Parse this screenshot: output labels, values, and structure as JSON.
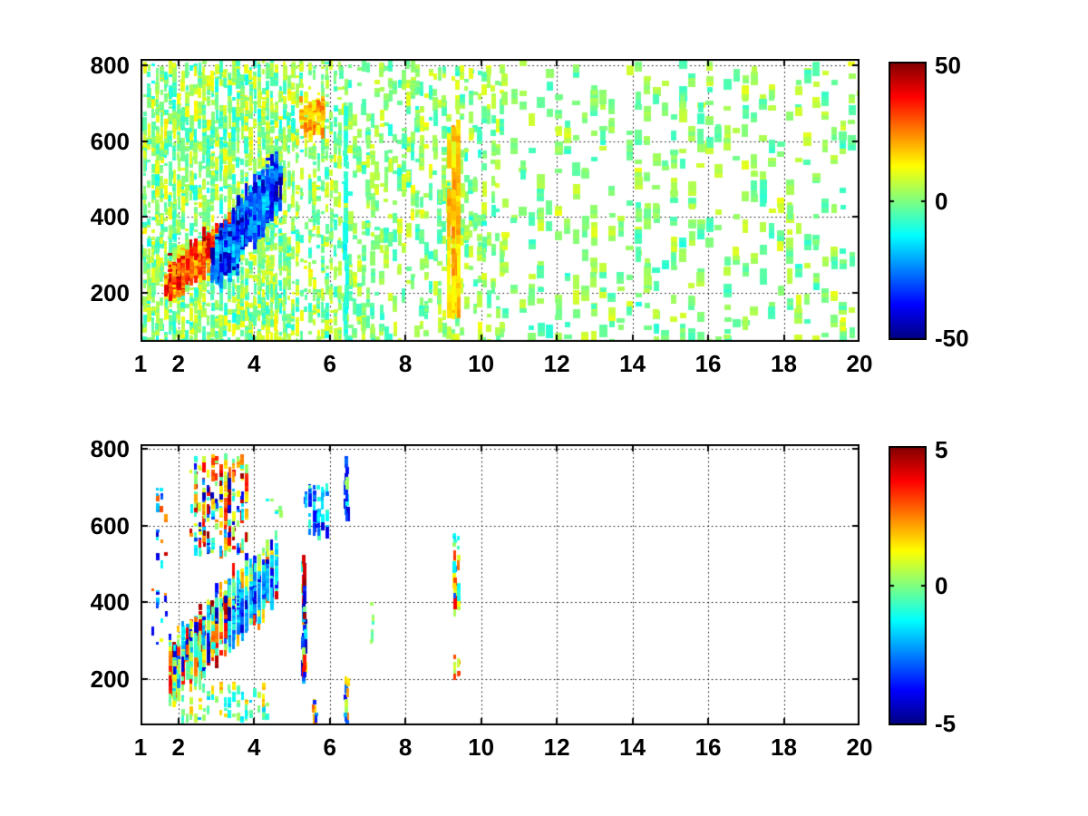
{
  "figure": {
    "background": "#ffffff",
    "axis_color": "#000000",
    "title": ""
  },
  "chart_data": [
    {
      "type": "heatmap",
      "title": "",
      "xlabel": "",
      "ylabel": "",
      "xlim": [
        1,
        20
      ],
      "ylim": [
        71,
        817
      ],
      "xticks": [
        1,
        2,
        4,
        6,
        8,
        10,
        12,
        14,
        16,
        18,
        20
      ],
      "xtick_labels": [
        "1",
        "2",
        "4",
        "6",
        "8",
        "10",
        "12",
        "14",
        "16",
        "18",
        "20"
      ],
      "yticks": [
        200,
        400,
        600,
        800
      ],
      "ytick_labels": [
        "200",
        "400",
        "600",
        "800"
      ],
      "grid": "dotted",
      "colormap": "jet",
      "colormap_stops": [
        "#00008F",
        "#0000FF",
        "#00FFFF",
        "#7FFF7F",
        "#FFFF00",
        "#FF0000",
        "#7F0000"
      ],
      "colorbar": {
        "min": -50,
        "max": 50,
        "ticks": [
          50,
          0,
          -50
        ],
        "labels": [
          "50",
          "0",
          "-50"
        ]
      },
      "seed": 1337,
      "regions": [
        {
          "kind": "scatter",
          "x": [
            1.02,
            5.15
          ],
          "y": [
            75,
            815
          ],
          "n": 1800,
          "v": [
            -10,
            13
          ],
          "w": [
            3,
            5
          ],
          "h": [
            2,
            4
          ],
          "run": [
            1,
            5
          ],
          "pitch": 0.112
        },
        {
          "kind": "scatter",
          "x": [
            5.15,
            6.35
          ],
          "y": [
            75,
            815
          ],
          "n": 300,
          "v": [
            -9,
            12
          ],
          "w": [
            3,
            5
          ],
          "h": [
            2,
            4
          ],
          "run": [
            1,
            4
          ],
          "pitch": 0.112
        },
        {
          "kind": "scatter",
          "x": [
            6.35,
            10.6
          ],
          "y": [
            75,
            815
          ],
          "n": 520,
          "v": [
            -8,
            10
          ],
          "w": [
            4,
            6
          ],
          "h": [
            3,
            5
          ],
          "run": [
            1,
            4
          ],
          "pitch": 0.118
        },
        {
          "kind": "scatter",
          "x": [
            10.6,
            19.95
          ],
          "y": [
            75,
            815
          ],
          "n": 430,
          "v": [
            -7,
            9
          ],
          "w": [
            6,
            9
          ],
          "h": [
            4,
            6
          ],
          "run": [
            1,
            3
          ],
          "pitch": 0.235
        },
        {
          "kind": "band",
          "line": {
            "x": [
              1.7,
              3.7
            ],
            "y": [
              235,
              400
            ]
          },
          "spread": 45,
          "n": 700,
          "v": [
            14,
            46
          ],
          "w": [
            3,
            5
          ],
          "h": [
            2,
            3
          ],
          "run": [
            1,
            6
          ],
          "pitch": 0.112
        },
        {
          "kind": "band",
          "line": {
            "x": [
              2.95,
              4.65
            ],
            "y": [
              290,
              520
            ]
          },
          "spread": 70,
          "n": 800,
          "v": [
            -46,
            -13
          ],
          "w": [
            3,
            5
          ],
          "h": [
            2,
            4
          ],
          "run": [
            1,
            7
          ],
          "pitch": 0.112
        },
        {
          "kind": "scatter",
          "x": [
            5.25,
            5.85
          ],
          "y": [
            630,
            720
          ],
          "n": 60,
          "v": [
            10,
            28
          ],
          "w": [
            4,
            5
          ],
          "h": [
            3,
            4
          ],
          "run": [
            1,
            3
          ],
          "pitch": 0.112
        },
        {
          "kind": "column",
          "x": [
            9.18,
            9.42
          ],
          "y": [
            205,
            660
          ],
          "n": 120,
          "v": [
            11,
            24
          ],
          "w": [
            4,
            5
          ],
          "h": [
            6,
            10
          ],
          "run": [
            2,
            5
          ],
          "pitch": 0.12
        },
        {
          "kind": "column",
          "x": [
            6.4,
            6.46
          ],
          "y": [
            100,
            700
          ],
          "n": 26,
          "v": [
            -13,
            -6
          ],
          "w": [
            4,
            5
          ],
          "h": [
            5,
            9
          ],
          "run": [
            1,
            3
          ],
          "pitch": 0
        }
      ]
    },
    {
      "type": "heatmap",
      "title": "",
      "xlabel": "",
      "ylabel": "",
      "xlim": [
        1,
        20
      ],
      "ylim": [
        80,
        812
      ],
      "xticks": [
        1,
        2,
        4,
        6,
        8,
        10,
        12,
        14,
        16,
        18,
        20
      ],
      "xtick_labels": [
        "1",
        "2",
        "4",
        "6",
        "8",
        "10",
        "12",
        "14",
        "16",
        "18",
        "20"
      ],
      "yticks": [
        200,
        400,
        600,
        800
      ],
      "ytick_labels": [
        "200",
        "400",
        "600",
        "800"
      ],
      "grid": "dotted",
      "colormap": "jet",
      "colormap_stops": [
        "#00008F",
        "#0000FF",
        "#00FFFF",
        "#7FFF7F",
        "#FFFF00",
        "#FF0000",
        "#7F0000"
      ],
      "colorbar": {
        "min": -5,
        "max": 5,
        "ticks": [
          5,
          0,
          -5
        ],
        "labels": [
          "5",
          "0",
          "-5"
        ]
      },
      "seed": 4242,
      "regions": [
        {
          "kind": "band",
          "line": {
            "x": [
              1.75,
              4.55
            ],
            "y": [
              235,
              505
            ]
          },
          "spread": 80,
          "n": 1100,
          "vmix": [
            {
              "p": 0.62,
              "v": [
                -2.2,
                1.8
              ]
            },
            {
              "p": 0.23,
              "v": [
                1.8,
                4.7
              ]
            },
            {
              "p": 0.15,
              "v": [
                -4.7,
                -2.0
              ]
            }
          ],
          "w": [
            3,
            4
          ],
          "h": [
            2,
            5
          ],
          "run": [
            1,
            6
          ],
          "pitch": 0.112
        },
        {
          "kind": "band",
          "line": {
            "x": [
              3.3,
              4.6
            ],
            "y": [
              350,
              500
            ]
          },
          "spread": 45,
          "n": 260,
          "vmix": [
            {
              "p": 0.7,
              "v": [
                -2.6,
                -0.8
              ]
            },
            {
              "p": 0.3,
              "v": [
                -4.6,
                -2.6
              ]
            }
          ],
          "w": [
            3,
            4
          ],
          "h": [
            2,
            5
          ],
          "run": [
            1,
            5
          ],
          "pitch": 0.112
        },
        {
          "kind": "scatter",
          "x": [
            2.35,
            3.85
          ],
          "y": [
            535,
            790
          ],
          "n": 200,
          "vmix": [
            {
              "p": 0.4,
              "v": [
                1.5,
                4.8
              ]
            },
            {
              "p": 0.4,
              "v": [
                -1.5,
                1.5
              ]
            },
            {
              "p": 0.2,
              "v": [
                -4.8,
                -1.5
              ]
            }
          ],
          "w": [
            3,
            4
          ],
          "h": [
            2,
            4
          ],
          "run": [
            1,
            4
          ],
          "pitch": 0.112
        },
        {
          "kind": "scatter",
          "x": [
            1.38,
            1.65
          ],
          "y": [
            290,
            700
          ],
          "n": 28,
          "vmix": [
            {
              "p": 0.5,
              "v": [
                -4.5,
                -1
              ]
            },
            {
              "p": 0.5,
              "v": [
                0.5,
                4.5
              ]
            }
          ],
          "w": [
            3,
            4
          ],
          "h": [
            2,
            4
          ],
          "run": [
            1,
            3
          ],
          "pitch": 0.112
        },
        {
          "kind": "scatter",
          "x": [
            5.35,
            6.0
          ],
          "y": [
            590,
            710
          ],
          "n": 50,
          "vmix": [
            {
              "p": 0.75,
              "v": [
                -2.6,
                -0.6
              ]
            },
            {
              "p": 0.25,
              "v": [
                -4.6,
                -2.6
              ]
            }
          ],
          "w": [
            3,
            4
          ],
          "h": [
            3,
            5
          ],
          "run": [
            1,
            3
          ],
          "pitch": 0.112
        },
        {
          "kind": "column",
          "x": [
            5.28,
            5.36
          ],
          "y": [
            215,
            525
          ],
          "n": 55,
          "v": [
            -5,
            5
          ],
          "w": [
            4,
            4
          ],
          "h": [
            4,
            7
          ],
          "run": [
            1,
            3
          ],
          "pitch": 0
        },
        {
          "kind": "column",
          "x": [
            6.4,
            6.48
          ],
          "y": [
            630,
            790
          ],
          "n": 20,
          "vmix": [
            {
              "p": 0.7,
              "v": [
                -4.5,
                -1
              ]
            },
            {
              "p": 0.3,
              "v": [
                -1,
                1
              ]
            }
          ],
          "w": [
            3,
            4
          ],
          "h": [
            3,
            6
          ],
          "run": [
            1,
            3
          ],
          "pitch": 0
        },
        {
          "kind": "column",
          "x": [
            6.4,
            6.48
          ],
          "y": [
            85,
            215
          ],
          "n": 14,
          "vmix": [
            {
              "p": 0.6,
              "v": [
                -4,
                -1.5
              ]
            },
            {
              "p": 0.4,
              "v": [
                0.5,
                2.5
              ]
            }
          ],
          "w": [
            3,
            4
          ],
          "h": [
            3,
            6
          ],
          "run": [
            1,
            3
          ],
          "pitch": 0
        },
        {
          "kind": "column",
          "x": [
            7.08,
            7.16
          ],
          "y": [
            300,
            430
          ],
          "n": 7,
          "v": [
            -0.5,
            1.0
          ],
          "w": [
            3,
            4
          ],
          "h": [
            3,
            5
          ],
          "run": [
            1,
            2
          ],
          "pitch": 0
        },
        {
          "kind": "column",
          "x": [
            9.25,
            9.42
          ],
          "y": [
            540,
            590
          ],
          "n": 8,
          "v": [
            -1.5,
            0.5
          ],
          "w": [
            3,
            4
          ],
          "h": [
            3,
            5
          ],
          "run": [
            1,
            2
          ],
          "pitch": 0.1
        },
        {
          "kind": "column",
          "x": [
            9.25,
            9.42
          ],
          "y": [
            390,
            540
          ],
          "n": 24,
          "vmix": [
            {
              "p": 0.5,
              "v": [
                -0.5,
                1.5
              ]
            },
            {
              "p": 0.3,
              "v": [
                -3.5,
                -1
              ]
            },
            {
              "p": 0.2,
              "v": [
                2,
                4.5
              ]
            }
          ],
          "w": [
            3,
            4
          ],
          "h": [
            4,
            7
          ],
          "run": [
            1,
            3
          ],
          "pitch": 0.1
        },
        {
          "kind": "column",
          "x": [
            9.25,
            9.42
          ],
          "y": [
            215,
            265
          ],
          "n": 9,
          "vmix": [
            {
              "p": 0.5,
              "v": [
                0.3,
                1.2
              ]
            },
            {
              "p": 0.5,
              "v": [
                2,
                3.5
              ]
            }
          ],
          "w": [
            3,
            4
          ],
          "h": [
            4,
            6
          ],
          "run": [
            1,
            2
          ],
          "pitch": 0.1
        },
        {
          "kind": "scatter",
          "x": [
            1.9,
            4.4
          ],
          "y": [
            95,
            195
          ],
          "n": 80,
          "vmix": [
            {
              "p": 0.7,
              "v": [
                -2,
                0.5
              ]
            },
            {
              "p": 0.3,
              "v": [
                0.5,
                2
              ]
            }
          ],
          "w": [
            3,
            4
          ],
          "h": [
            2,
            4
          ],
          "run": [
            1,
            3
          ],
          "pitch": 0.112
        },
        {
          "kind": "column",
          "x": [
            5.56,
            5.66
          ],
          "y": [
            90,
            150
          ],
          "n": 9,
          "vmix": [
            {
              "p": 0.6,
              "v": [
                -4,
                -2
              ]
            },
            {
              "p": 0.4,
              "v": [
                1.5,
                3
              ]
            }
          ],
          "w": [
            3,
            4
          ],
          "h": [
            3,
            5
          ],
          "run": [
            1,
            2
          ],
          "pitch": 0
        },
        {
          "kind": "scatter",
          "x": [
            4.3,
            4.75
          ],
          "y": [
            630,
            675
          ],
          "n": 6,
          "v": [
            -1.5,
            0.5
          ],
          "w": [
            3,
            4
          ],
          "h": [
            2,
            4
          ],
          "run": [
            1,
            2
          ],
          "pitch": 0.112
        }
      ]
    }
  ]
}
